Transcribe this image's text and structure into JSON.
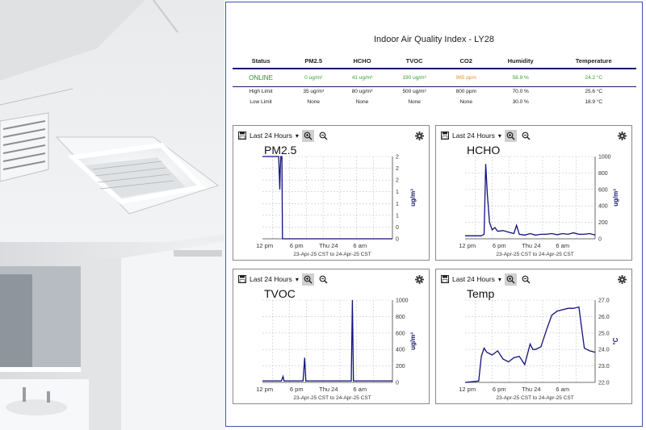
{
  "dashboard": {
    "title": "Indoor Air Quality Index - LY28",
    "table": {
      "headers": [
        "Status",
        "PM2.5",
        "HCHO",
        "TVOC",
        "CO2",
        "Humidity",
        "Temperature"
      ],
      "current": [
        "ONLINE",
        "0 ug/m³",
        "41 ug/m³",
        "190 ug/m³",
        "965 ppm",
        "58.9 %",
        "24.2 °C"
      ],
      "high_limit": [
        "High Limit",
        "35 ug/m³",
        "80 ug/m³",
        "500 ug/m³",
        "800 ppm",
        "70.0 %",
        "25.6 °C"
      ],
      "low_limit": [
        "Low Limit",
        "None",
        "None",
        "None",
        "None",
        "30.0 %",
        "18.9 °C"
      ]
    },
    "status_colors": {
      "ok": "#3aa03a",
      "warn": "#e0922a",
      "online": "#2e8b2e"
    }
  },
  "panel_controls": {
    "range_label": "Last 24 Hours",
    "icons": [
      "save-icon",
      "chevron-down-icon",
      "zoom-in-icon",
      "zoom-out-icon",
      "gear-icon"
    ]
  },
  "chart_data": [
    {
      "type": "line",
      "title": "PM2.5",
      "ylabel": "ug/m³",
      "xticks": [
        "12 pm",
        "6 pm",
        "Thu 24",
        "6 am"
      ],
      "yticks": [
        "0",
        "0",
        "1",
        "1",
        "1",
        "2",
        "2",
        "2"
      ],
      "ylim": [
        0,
        2
      ],
      "xlabel": "23-Apr-25 CST to 24-Apr-25 CST",
      "x": [
        0,
        2.5,
        3.0,
        3.2,
        3.3,
        3.4,
        3.6,
        3.7,
        24
      ],
      "y": [
        2,
        2,
        2,
        1.2,
        1.7,
        2,
        2,
        0,
        0
      ]
    },
    {
      "type": "line",
      "title": "HCHO",
      "ylabel": "ug/m³",
      "xticks": [
        "12 pm",
        "6 pm",
        "Thu 24",
        "6 am"
      ],
      "yticks": [
        "0",
        "200",
        "400",
        "600",
        "800",
        "1000"
      ],
      "ylim": [
        0,
        1100
      ],
      "xlabel": "23-Apr-25 CST to 24-Apr-25 CST",
      "x": [
        0,
        3.0,
        3.5,
        3.8,
        4.1,
        4.5,
        5.0,
        5.5,
        6.0,
        7.0,
        8.0,
        9.0,
        9.5,
        10.0,
        11.0,
        12.0,
        13.0,
        14.0,
        15.0,
        16.0,
        17.0,
        18.0,
        19.0,
        20.0,
        21.0,
        22.0,
        23.0,
        24.0
      ],
      "y": [
        40,
        40,
        60,
        1000,
        600,
        220,
        120,
        150,
        100,
        110,
        90,
        70,
        180,
        60,
        50,
        70,
        50,
        60,
        60,
        70,
        55,
        70,
        60,
        80,
        60,
        60,
        70,
        50
      ]
    },
    {
      "type": "line",
      "title": "TVOC",
      "ylabel": "ug/m³",
      "xticks": [
        "12 pm",
        "6 pm",
        "Thu 24",
        "6 am"
      ],
      "yticks": [
        "0",
        "200",
        "400",
        "600",
        "800",
        "1000"
      ],
      "ylim": [
        0,
        1100
      ],
      "xlabel": "23-Apr-25 CST to 24-Apr-25 CST",
      "x": [
        0,
        3.5,
        3.8,
        4.0,
        6.0,
        7.5,
        7.8,
        8.0,
        9.0,
        12.0,
        13.0,
        16.0,
        16.4,
        16.6,
        16.8,
        17.0,
        19.0,
        21.0,
        24.0
      ],
      "y": [
        20,
        20,
        80,
        20,
        20,
        20,
        330,
        20,
        20,
        20,
        20,
        20,
        20,
        1100,
        20,
        20,
        20,
        20,
        20
      ]
    },
    {
      "type": "line",
      "title": "Temp",
      "ylabel": "°C",
      "xticks": [
        "12 pm",
        "6 pm",
        "Thu 24",
        "6 am"
      ],
      "yticks": [
        "22.0",
        "23.0",
        "24.0",
        "25.0",
        "26.0",
        "27.0"
      ],
      "ylim": [
        22,
        28
      ],
      "xlabel": "23-Apr-25 CST to 24-Apr-25 CST",
      "x": [
        0,
        2.5,
        3.0,
        3.5,
        4.0,
        5.0,
        6.0,
        7.0,
        8.0,
        9.0,
        10.0,
        11.0,
        12.0,
        12.5,
        13.0,
        14.0,
        15.0,
        16.0,
        17.0,
        18.0,
        19.0,
        20.0,
        21.0,
        22.0,
        23.0,
        24.0
      ],
      "y": [
        22.0,
        22.1,
        23.9,
        24.5,
        24.2,
        24.0,
        24.3,
        23.7,
        23.5,
        23.8,
        23.9,
        23.3,
        24.8,
        24.4,
        24.4,
        24.6,
        25.8,
        26.9,
        27.2,
        27.3,
        27.4,
        27.4,
        27.5,
        24.5,
        24.3,
        24.2
      ]
    }
  ]
}
